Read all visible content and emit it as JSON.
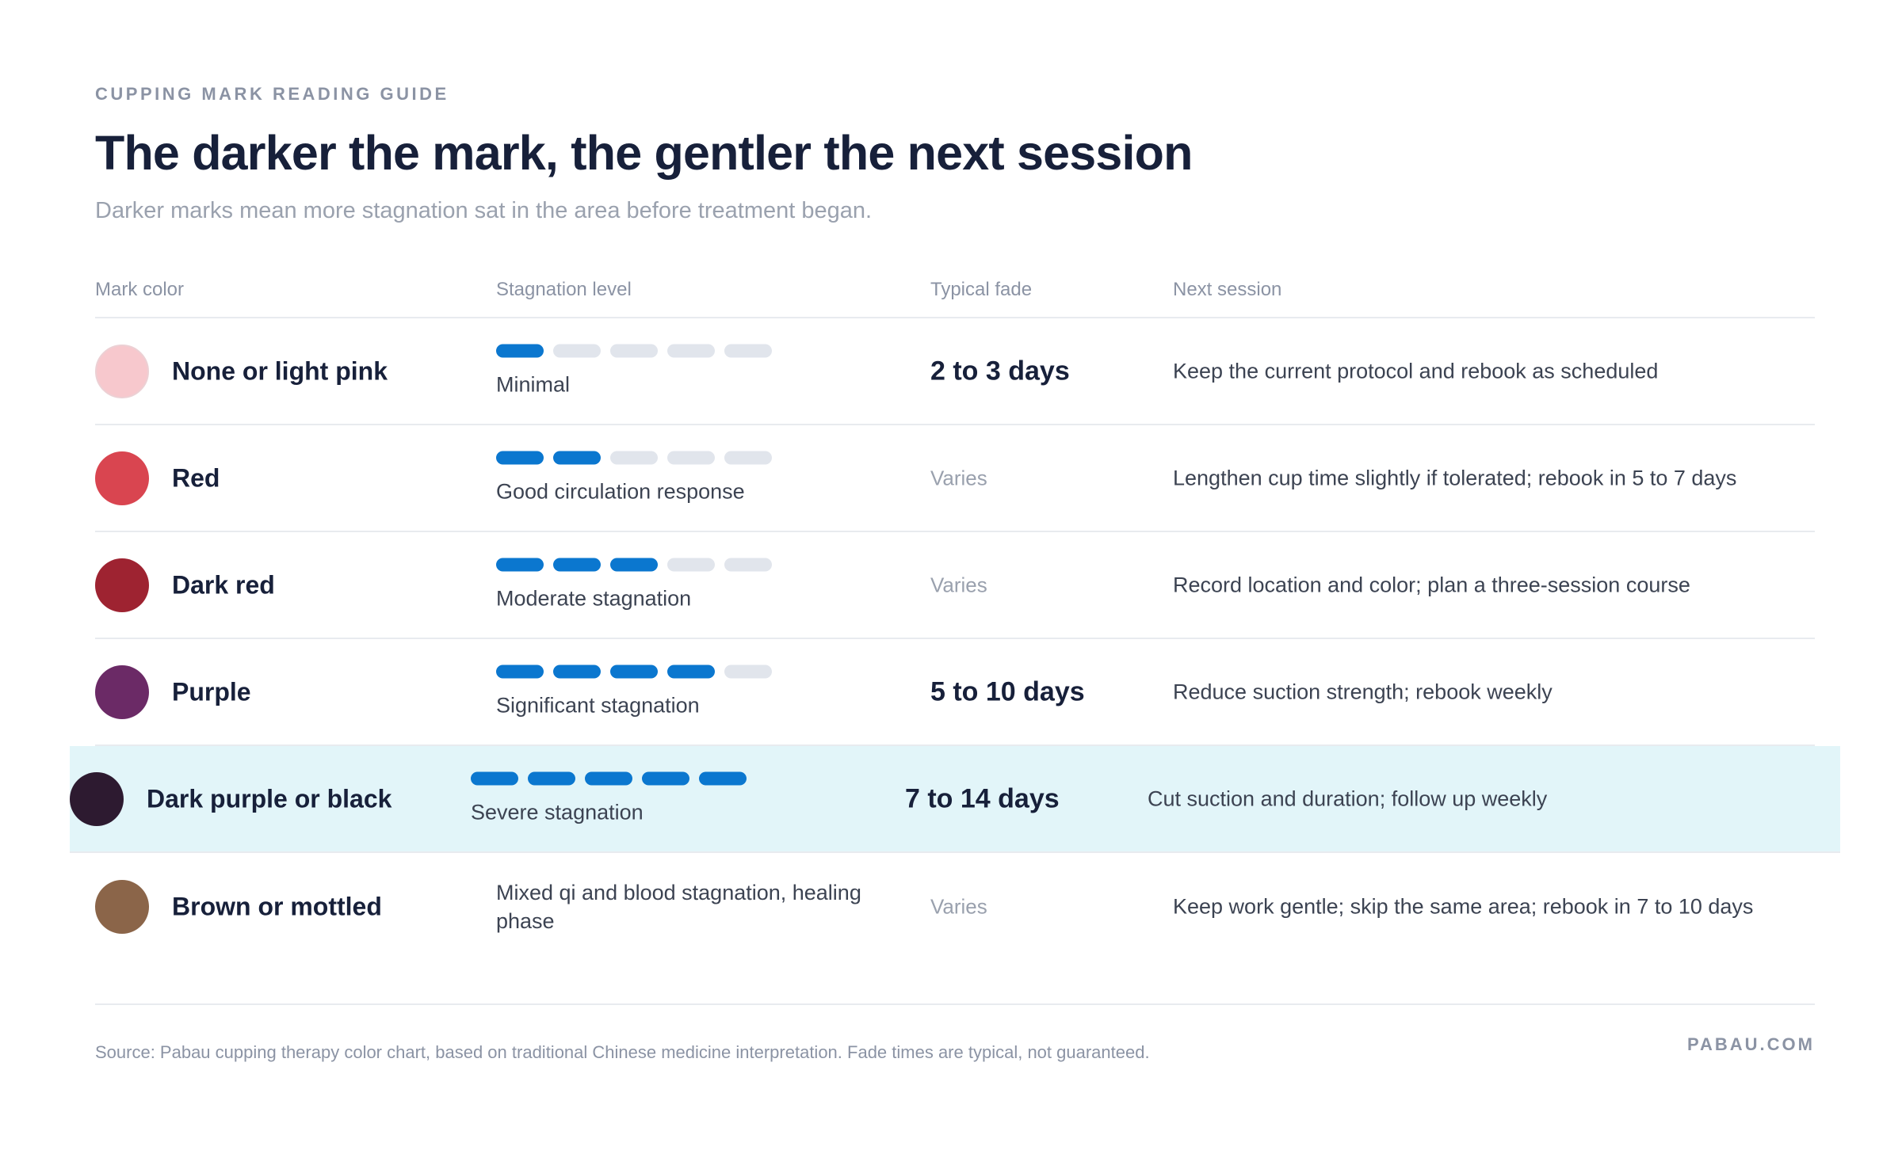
{
  "eyebrow": "CUPPING MARK READING GUIDE",
  "title": "The darker the mark, the gentler the next session",
  "subtitle": "Darker marks mean more stagnation sat in the area before treatment began.",
  "columns": {
    "mark_color": "Mark color",
    "stagnation_level": "Stagnation level",
    "typical_fade": "Typical fade",
    "next_session": "Next session"
  },
  "colors": {
    "accent": "#0b77cf",
    "dot_off": "#e1e5ec",
    "highlight_row": "#e2f5f9"
  },
  "rows": [
    {
      "color_name": "None or light pink",
      "swatch": "#f7c8cd",
      "level_filled": 1,
      "level_total": 5,
      "level_label": "Minimal",
      "fade": "2 to 3 days",
      "fade_muted": false,
      "next": "Keep the current protocol and rebook as scheduled"
    },
    {
      "color_name": "Red",
      "swatch": "#d94550",
      "level_filled": 2,
      "level_total": 5,
      "level_label": "Good circulation response",
      "fade": "Varies",
      "fade_muted": true,
      "next": "Lengthen cup time slightly if tolerated; rebook in 5 to 7 days"
    },
    {
      "color_name": "Dark red",
      "swatch": "#9e2331",
      "level_filled": 3,
      "level_total": 5,
      "level_label": "Moderate stagnation",
      "fade": "Varies",
      "fade_muted": true,
      "next": "Record location and color; plan a three-session course"
    },
    {
      "color_name": "Purple",
      "swatch": "#6b2a66",
      "level_filled": 4,
      "level_total": 5,
      "level_label": "Significant stagnation",
      "fade": "5 to 10 days",
      "fade_muted": false,
      "next": "Reduce suction strength; rebook weekly"
    },
    {
      "color_name": "Dark purple or black",
      "swatch": "#2d1a30",
      "level_filled": 5,
      "level_total": 5,
      "level_label": "Severe stagnation",
      "fade": "7 to 14 days",
      "fade_muted": false,
      "highlight": true,
      "next": "Cut suction and duration; follow up weekly"
    },
    {
      "color_name": "Brown or mottled",
      "swatch": "#8b6549",
      "level_filled": 0,
      "level_total": 0,
      "level_label": "Mixed qi and blood stagnation, healing phase",
      "fade": "Varies",
      "fade_muted": true,
      "next": "Keep work gentle; skip the same area; rebook in 7 to 10 days"
    }
  ],
  "source": "Source: Pabau cupping therapy color chart, based on traditional Chinese medicine interpretation. Fade times are typical, not guaranteed.",
  "brand": "PABAU.COM"
}
